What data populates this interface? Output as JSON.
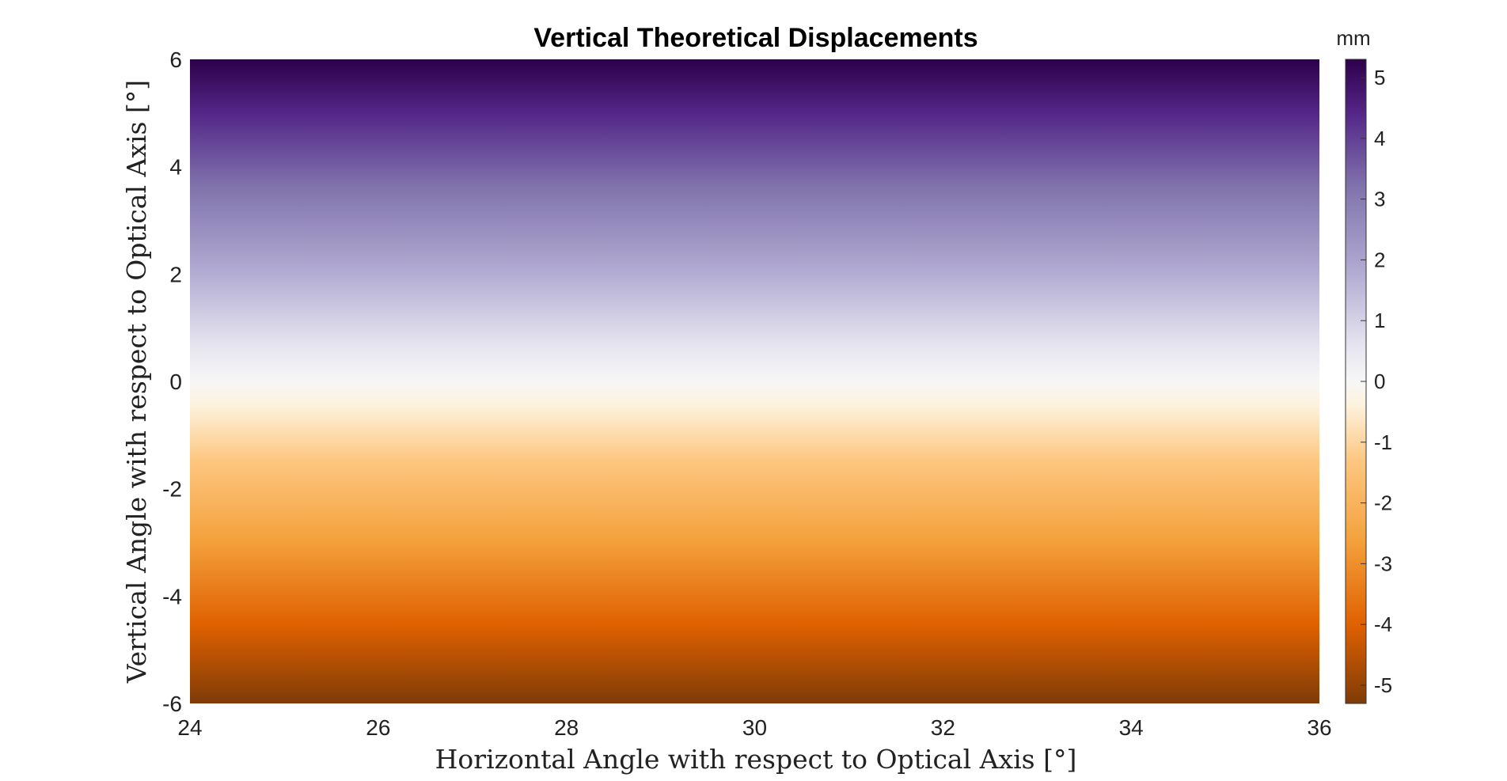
{
  "chart_data": {
    "type": "heatmap",
    "title": "Vertical Theoretical Displacements",
    "xlabel": "Horizontal Angle with respect to Optical Axis [°]",
    "ylabel": "Vertical Angle with respect to Optical Axis [°]",
    "xlim": [
      24,
      36
    ],
    "ylim": [
      -6,
      6
    ],
    "x_ticks": [
      "24",
      "26",
      "28",
      "30",
      "32",
      "34",
      "36"
    ],
    "y_ticks": [
      "-6",
      "-4",
      "-2",
      "0",
      "2",
      "4",
      "6"
    ],
    "description_of_field": "displacement varies only with vertical angle, approximately linear",
    "value_at_ylim": [
      -5.3,
      5.3
    ],
    "colorbar": {
      "unit": "mm",
      "range": [
        -5.3,
        5.3
      ],
      "ticks": [
        "-5",
        "-4",
        "-3",
        "-2",
        "-1",
        "0",
        "1",
        "2",
        "3",
        "4",
        "5"
      ],
      "colormap_stops": [
        {
          "value": -5.3,
          "color": "#7f3b08"
        },
        {
          "value": -4.0,
          "color": "#e06100"
        },
        {
          "value": -2.6,
          "color": "#f4a23d"
        },
        {
          "value": -1.3,
          "color": "#fdc781"
        },
        {
          "value": -0.4,
          "color": "#fdf2dd"
        },
        {
          "value": 0.0,
          "color": "#f7f7f7"
        },
        {
          "value": 0.6,
          "color": "#e6e4ef"
        },
        {
          "value": 1.8,
          "color": "#b2abd2"
        },
        {
          "value": 3.2,
          "color": "#8073ac"
        },
        {
          "value": 4.4,
          "color": "#542788"
        },
        {
          "value": 5.3,
          "color": "#2d004b"
        }
      ]
    }
  }
}
